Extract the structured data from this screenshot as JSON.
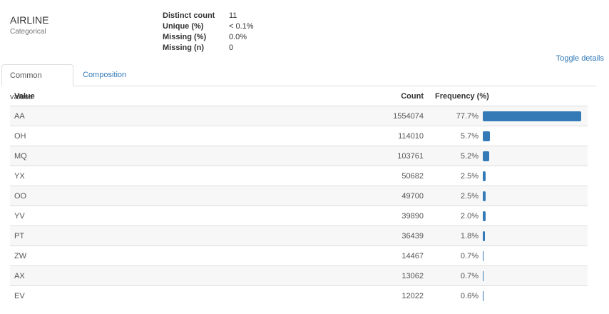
{
  "variable": {
    "name": "AIRLINE",
    "type": "Categorical"
  },
  "stats": [
    {
      "label": "Distinct count",
      "value": "11"
    },
    {
      "label": "Unique (%)",
      "value": "< 0.1%"
    },
    {
      "label": "Missing (%)",
      "value": "0.0%"
    },
    {
      "label": "Missing (n)",
      "value": "0"
    }
  ],
  "toggle_label": "Toggle details",
  "tabs": [
    {
      "label": "Common values",
      "active": true
    },
    {
      "label": "Composition",
      "active": false
    }
  ],
  "table": {
    "headers": {
      "value": "Value",
      "count": "Count",
      "frequency": "Frequency (%)"
    },
    "bar_color": "#337ab7",
    "rows": [
      {
        "value": "AA",
        "count": "1554074",
        "pct": "77.7%",
        "fraction": 0.777
      },
      {
        "value": "OH",
        "count": "114010",
        "pct": "5.7%",
        "fraction": 0.057
      },
      {
        "value": "MQ",
        "count": "103761",
        "pct": "5.2%",
        "fraction": 0.052
      },
      {
        "value": "YX",
        "count": "50682",
        "pct": "2.5%",
        "fraction": 0.025
      },
      {
        "value": "OO",
        "count": "49700",
        "pct": "2.5%",
        "fraction": 0.025
      },
      {
        "value": "YV",
        "count": "39890",
        "pct": "2.0%",
        "fraction": 0.02
      },
      {
        "value": "PT",
        "count": "36439",
        "pct": "1.8%",
        "fraction": 0.018
      },
      {
        "value": "ZW",
        "count": "14467",
        "pct": "0.7%",
        "fraction": 0.007
      },
      {
        "value": "AX",
        "count": "13062",
        "pct": "0.7%",
        "fraction": 0.007
      },
      {
        "value": "EV",
        "count": "12022",
        "pct": "0.6%",
        "fraction": 0.006
      }
    ]
  }
}
